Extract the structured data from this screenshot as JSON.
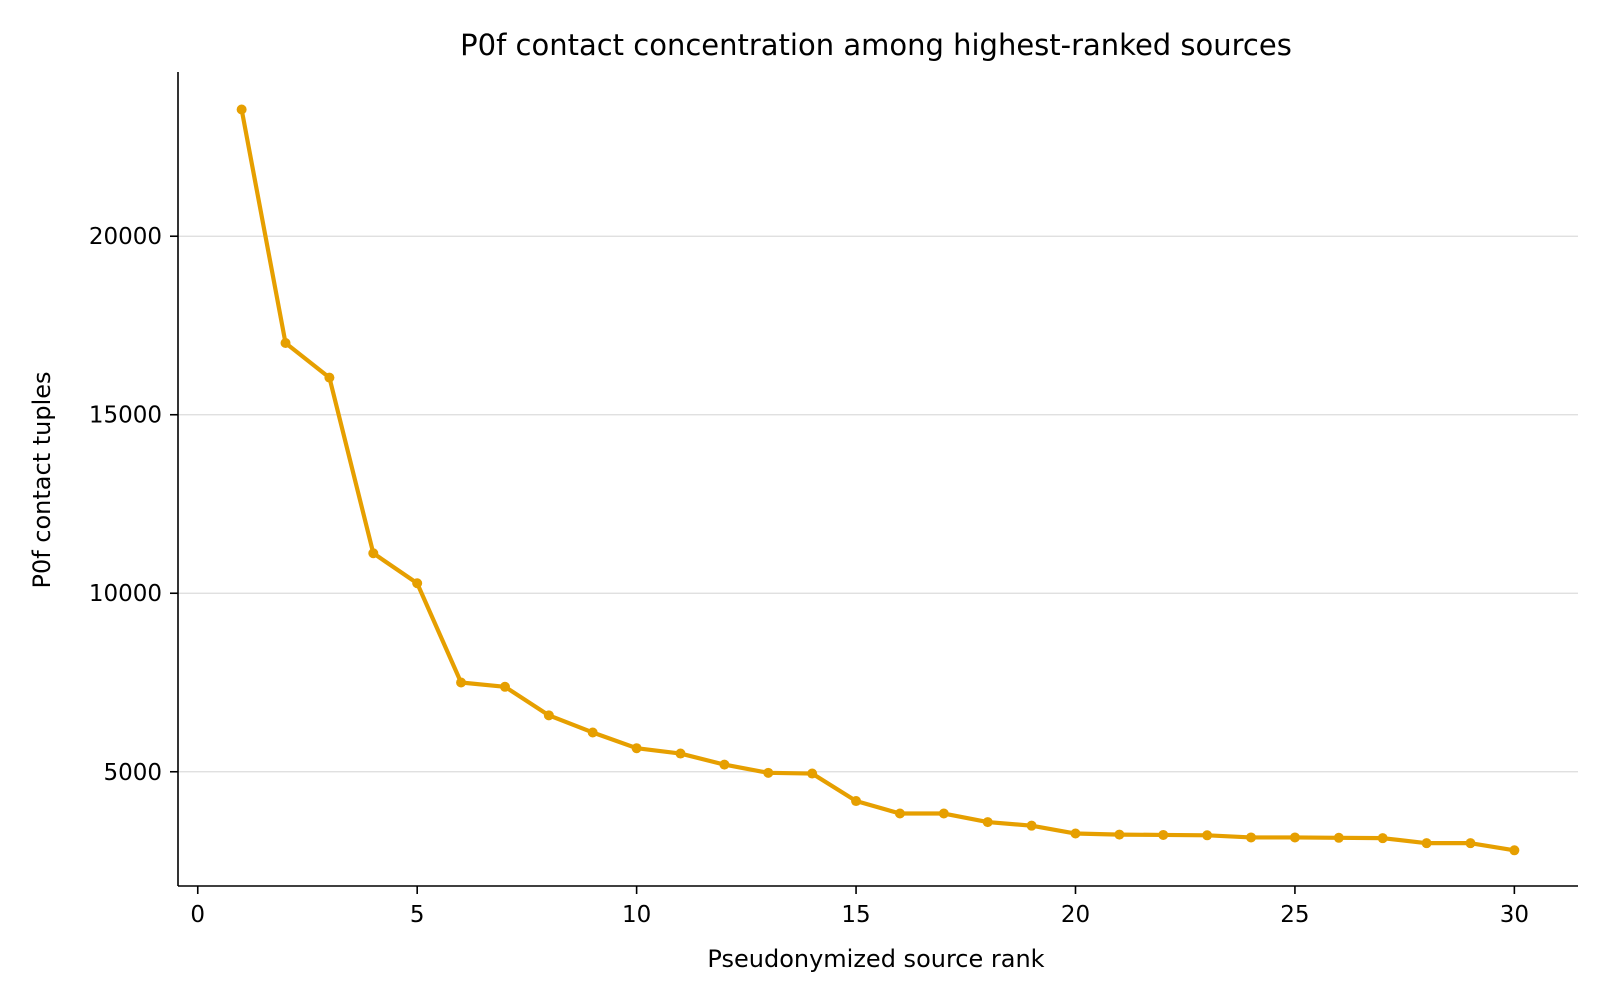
{
  "chart_data": {
    "type": "line",
    "title": "P0f contact concentration among highest-ranked sources",
    "xlabel": "Pseudonymized source rank",
    "ylabel": "P0f contact tuples",
    "xlim": [
      -0.45,
      31.45
    ],
    "ylim": [
      1800,
      24600
    ],
    "xticks": [
      0,
      5,
      10,
      15,
      20,
      25,
      30
    ],
    "yticks": [
      5000,
      10000,
      15000,
      20000
    ],
    "grid": "y-major",
    "legend": "none",
    "series": [
      {
        "color": "#e69f00",
        "x": [
          1,
          2,
          3,
          4,
          5,
          6,
          7,
          8,
          9,
          10,
          11,
          12,
          13,
          14,
          15,
          16,
          17,
          18,
          19,
          20,
          21,
          22,
          23,
          24,
          25,
          26,
          27,
          28,
          29,
          30
        ],
        "y": [
          23550,
          17010,
          16040,
          11120,
          10280,
          7500,
          7380,
          6580,
          6100,
          5660,
          5510,
          5200,
          4970,
          4950,
          4180,
          3830,
          3830,
          3590,
          3490,
          3270,
          3240,
          3230,
          3220,
          3160,
          3160,
          3150,
          3140,
          3000,
          3000,
          2800
        ]
      }
    ]
  }
}
